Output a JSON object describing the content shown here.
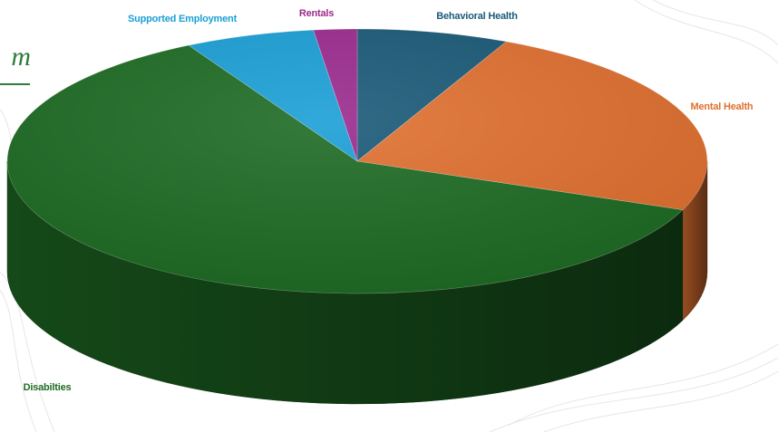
{
  "title_fragment": "m",
  "chart_data": {
    "type": "pie",
    "style": "3d",
    "title": "",
    "categories": [
      "Behavioral Health",
      "Mental Health",
      "Disabilties",
      "Supported Employment",
      "Rentals"
    ],
    "values": [
      7,
      24,
      61,
      6,
      2
    ],
    "unit": "percent",
    "colors": [
      "#1a5a78",
      "#e07030",
      "#1e6b24",
      "#1b9fd6",
      "#9b2b8e"
    ],
    "label_colors": [
      "#1a5a78",
      "#e07030",
      "#1e6b24",
      "#1b9fd6",
      "#9b2b8e"
    ],
    "legend": "labels-on-slices"
  }
}
